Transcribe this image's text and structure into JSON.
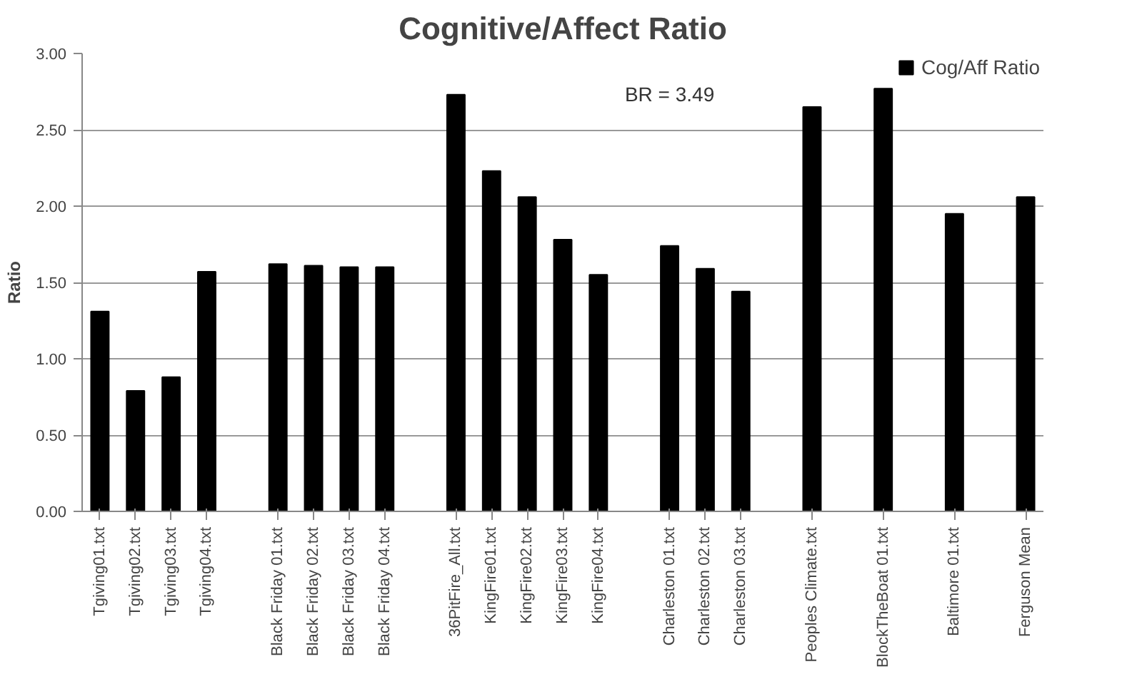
{
  "chart_data": {
    "type": "bar",
    "title": "Cognitive/Affect Ratio",
    "ylabel": "Ratio",
    "categories": [
      "Tgiving01.txt",
      "Tgiving02.txt",
      "Tgiving03.txt",
      "Tgiving04.txt",
      null,
      "Black Friday 01.txt",
      "Black Friday 02.txt",
      "Black Friday 03.txt",
      "Black Friday 04.txt",
      null,
      "36PitFire_All.txt",
      "KingFire01.txt",
      "KingFire02.txt",
      "KingFire03.txt",
      "KingFire04.txt",
      null,
      "Charleston 01.txt",
      "Charleston 02.txt",
      "Charleston 03.txt",
      null,
      "Peoples Climate.txt",
      null,
      "BlockTheBoat 01.txt",
      null,
      "Baltimore 01.txt",
      null,
      "Ferguson Mean"
    ],
    "series": [
      {
        "name": "Cog/Aff Ratio",
        "color": "#000000",
        "values": [
          1.31,
          0.79,
          0.88,
          1.57,
          null,
          1.62,
          1.61,
          1.6,
          1.6,
          null,
          2.73,
          2.23,
          2.06,
          1.78,
          1.55,
          null,
          1.74,
          1.59,
          1.44,
          null,
          2.65,
          null,
          2.77,
          null,
          1.95,
          null,
          2.06
        ]
      }
    ],
    "ylim": [
      0,
      3
    ],
    "yticks": [
      {
        "value": 0,
        "label": "0.00"
      },
      {
        "value": 0.5,
        "label": "0.50"
      },
      {
        "value": 1,
        "label": "1.00"
      },
      {
        "value": 1.5,
        "label": "1.50"
      },
      {
        "value": 2,
        "label": "2.00"
      },
      {
        "value": 2.5,
        "label": "2.50"
      },
      {
        "value": 3,
        "label": "3.00"
      }
    ],
    "grid": "y",
    "legend": "top right",
    "annotations": [
      "BR = 3.49"
    ]
  }
}
